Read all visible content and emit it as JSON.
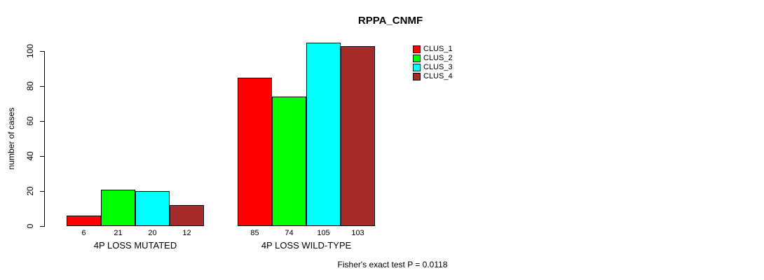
{
  "chart_data": {
    "type": "bar",
    "title": "RPPA_CNMF",
    "xlabel": "",
    "ylabel": "number of cases",
    "ylim": [
      0,
      100
    ],
    "yticks": [
      0,
      20,
      40,
      60,
      80,
      100
    ],
    "grid": false,
    "legend_position": "right",
    "categories": [
      "4P LOSS MUTATED",
      "4P LOSS WILD-TYPE"
    ],
    "series": [
      {
        "name": "CLUS_1",
        "color": "#FF0000",
        "values": [
          6,
          85
        ]
      },
      {
        "name": "CLUS_2",
        "color": "#00FF00",
        "values": [
          21,
          74
        ]
      },
      {
        "name": "CLUS_3",
        "color": "#00FFFF",
        "values": [
          20,
          105
        ]
      },
      {
        "name": "CLUS_4",
        "color": "#A52A2A",
        "values": [
          12,
          103
        ]
      }
    ],
    "bar_value_labels": [
      [
        6,
        21,
        20,
        12
      ],
      [
        85,
        74,
        105,
        103
      ]
    ],
    "annotation": "Fisher's exact test P = 0.0118"
  }
}
